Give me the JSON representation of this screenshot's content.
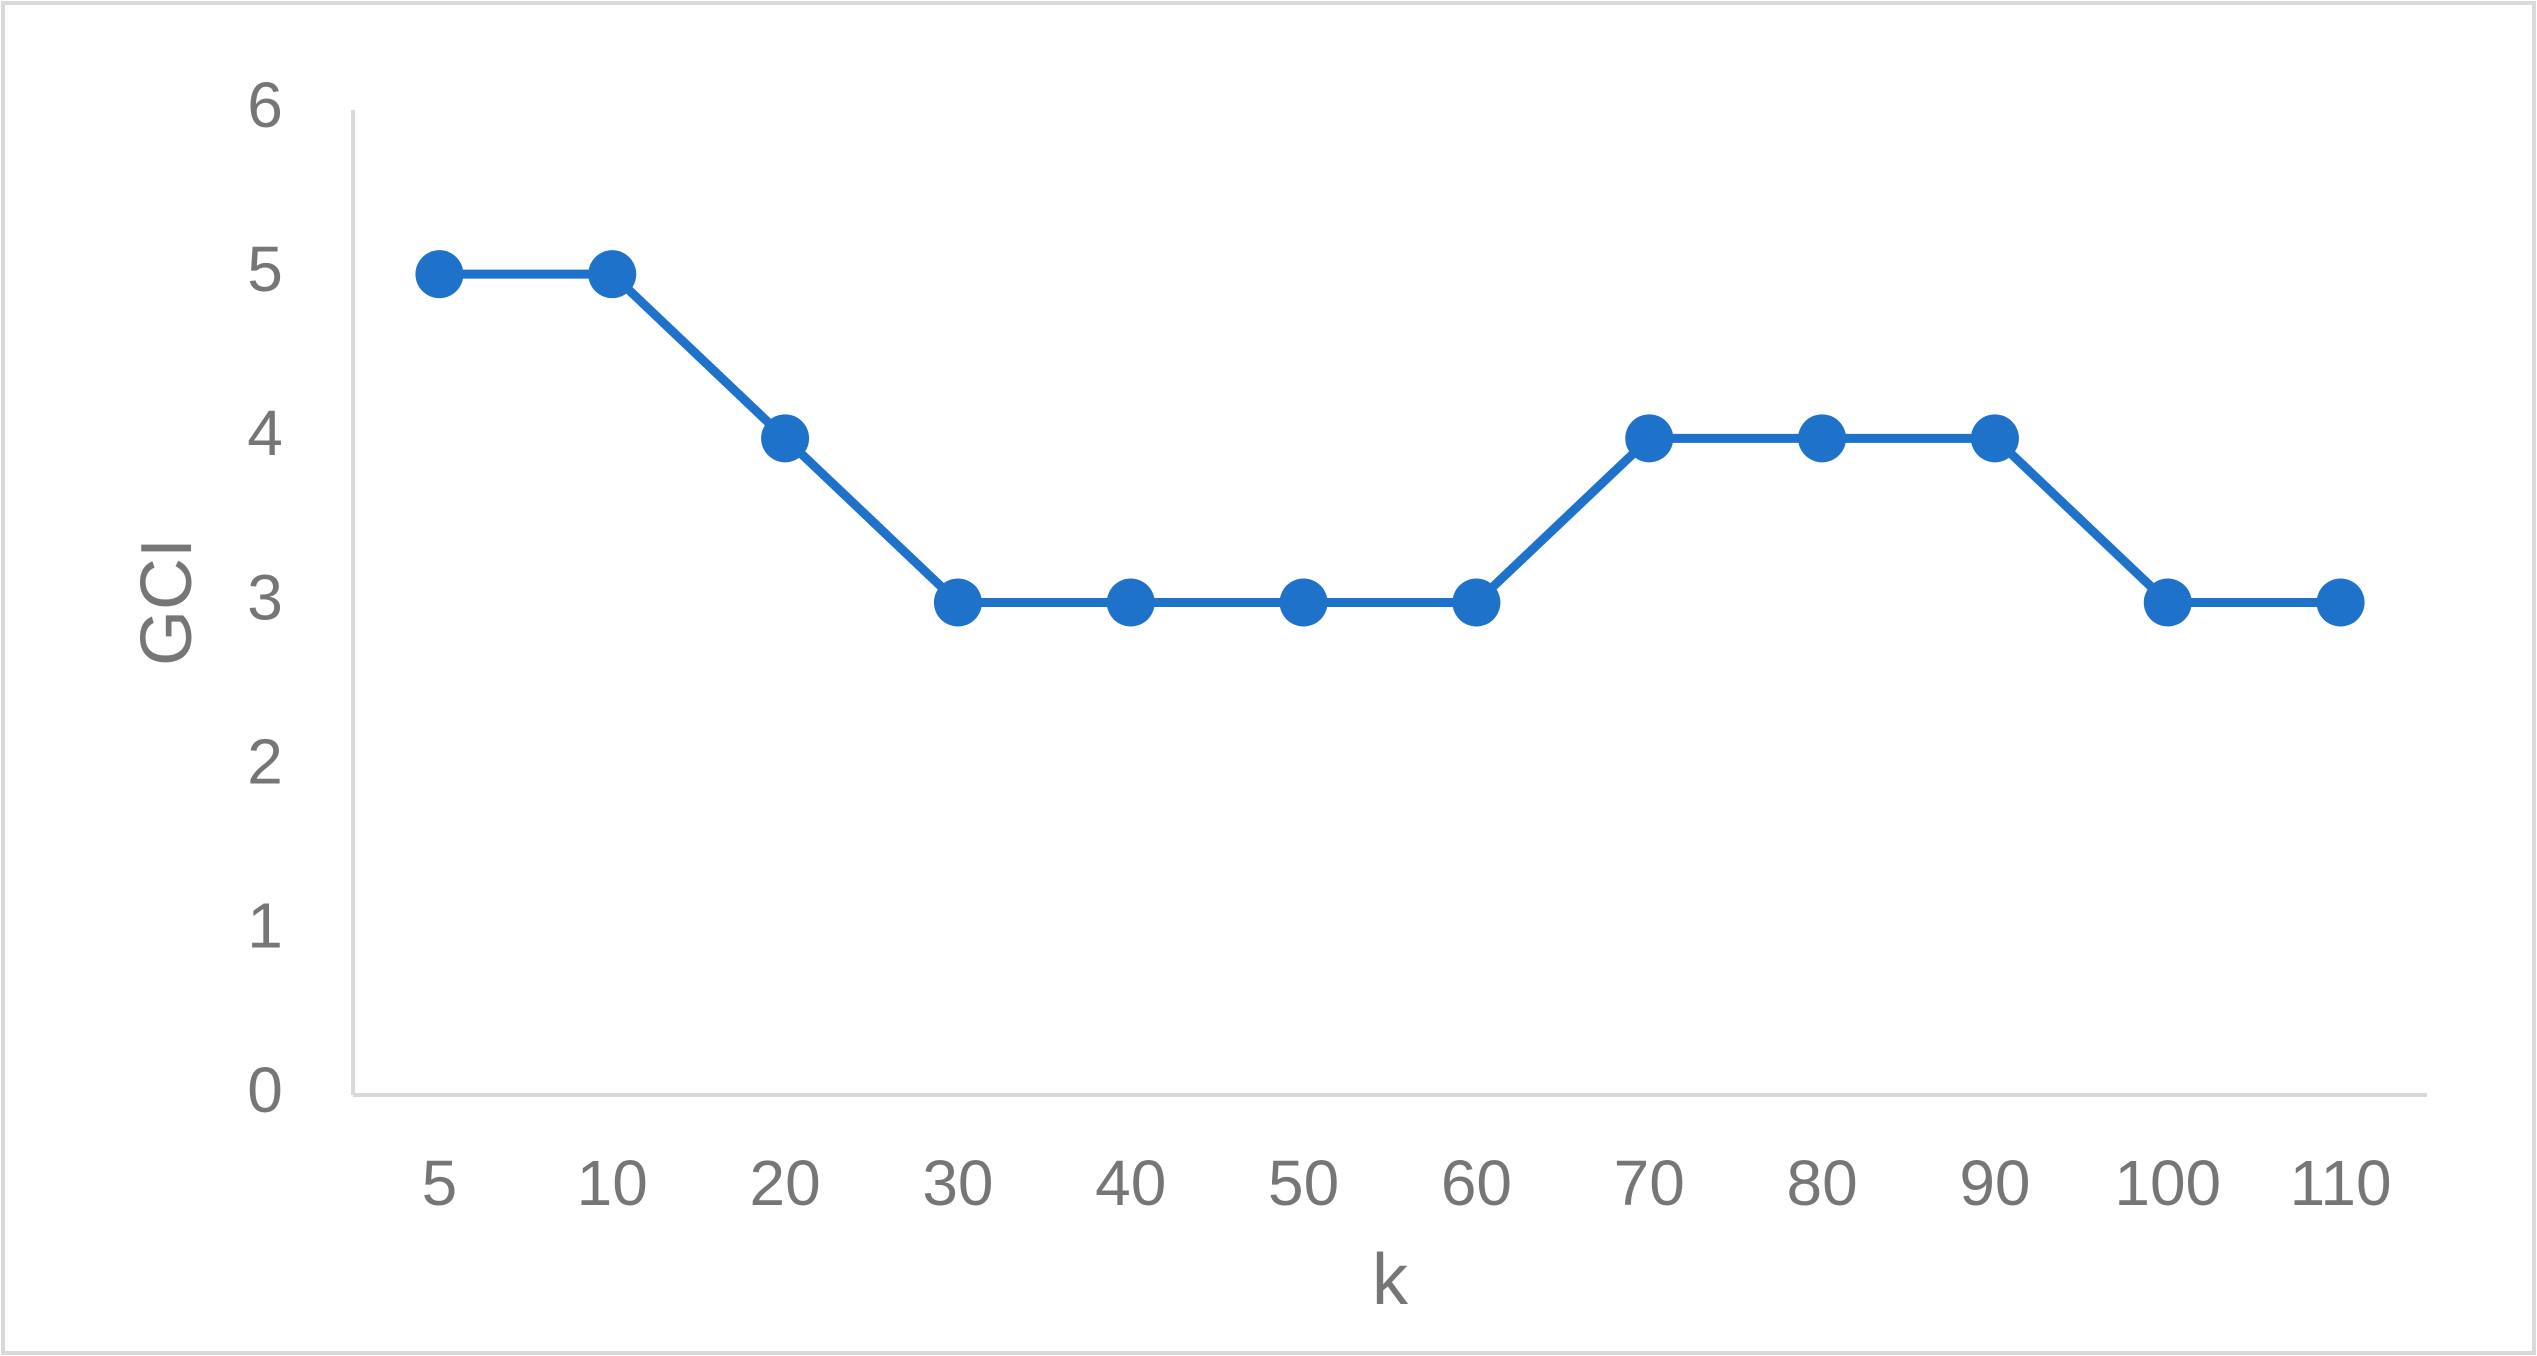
{
  "chart_data": {
    "type": "line",
    "x_label": "k",
    "y_label": "GCI",
    "categories": [
      "5",
      "10",
      "20",
      "30",
      "40",
      "50",
      "60",
      "70",
      "80",
      "90",
      "100",
      "110"
    ],
    "series": [
      {
        "name": "GCI",
        "color": "#1f72c9",
        "values": [
          5,
          5,
          4,
          3,
          3,
          3,
          3,
          4,
          4,
          4,
          3,
          3
        ]
      }
    ],
    "ylim": [
      0,
      6
    ],
    "yticks": [
      0,
      1,
      2,
      3,
      4,
      5,
      6
    ],
    "grid": false
  }
}
